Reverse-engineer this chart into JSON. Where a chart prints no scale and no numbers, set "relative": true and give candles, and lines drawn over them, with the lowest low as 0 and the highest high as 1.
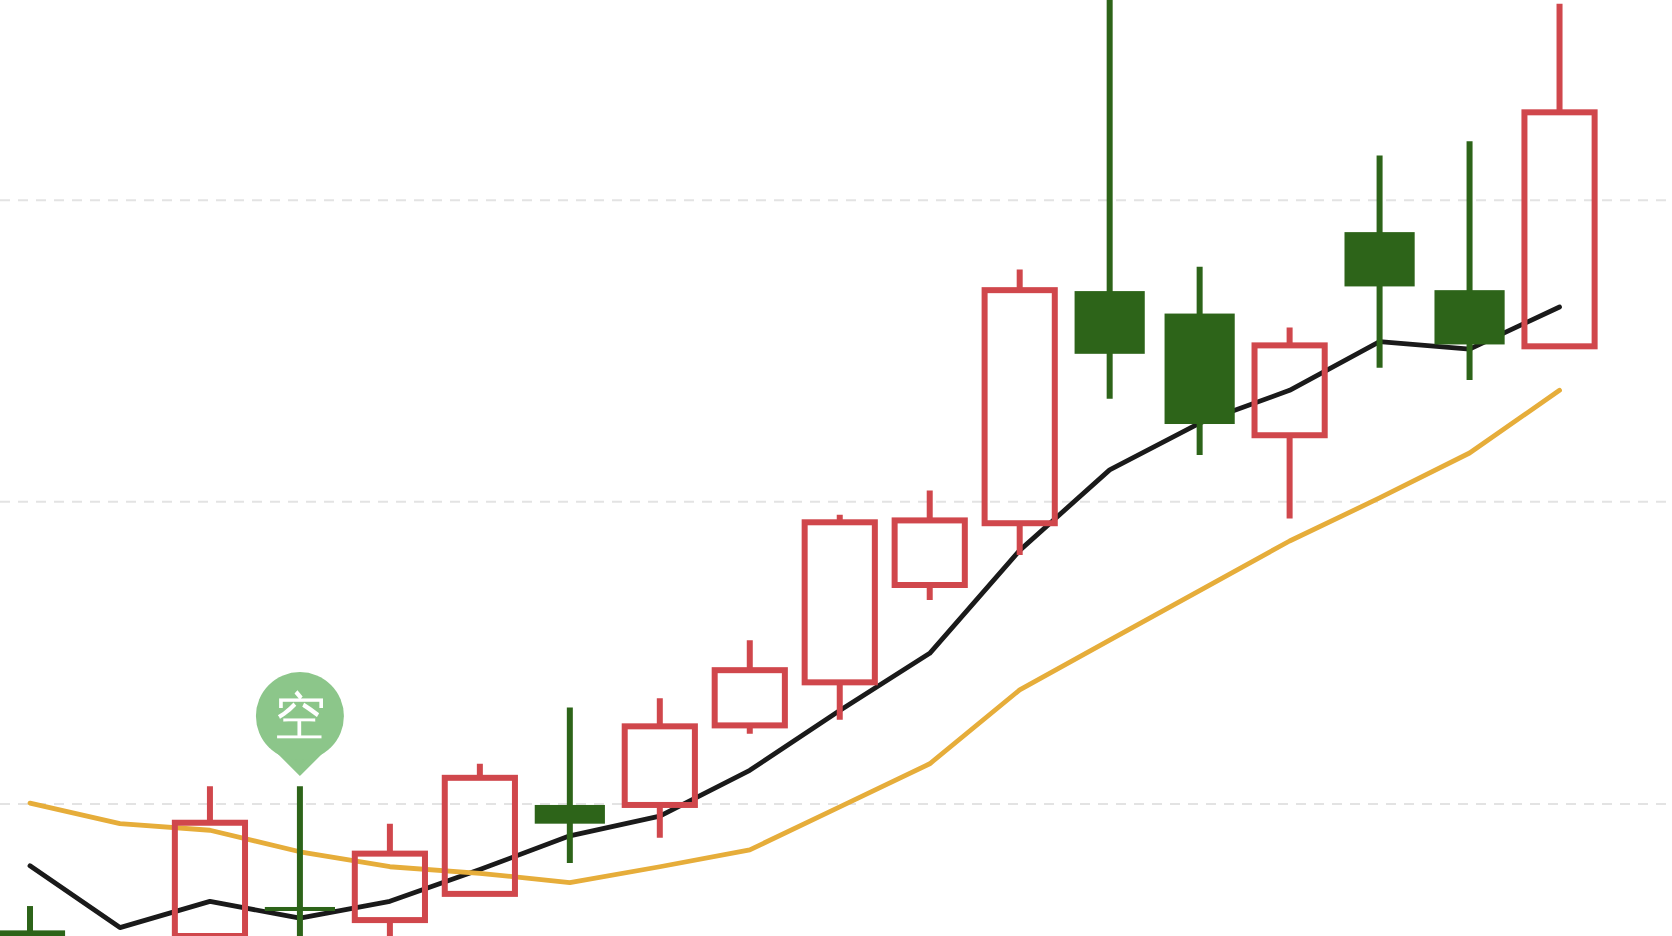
{
  "chart_data": {
    "type": "candlestick",
    "relative": true,
    "categories": [
      null,
      null,
      null,
      null,
      null,
      null,
      null,
      null,
      null,
      null,
      null,
      null,
      null,
      null,
      null,
      null,
      null,
      null
    ],
    "ohlc": [
      [
        0.006,
        0.032,
        0,
        0
      ],
      null,
      [
        0,
        0.16,
        0,
        0.121
      ],
      [
        0.031,
        0.16,
        0,
        0.027
      ],
      [
        0.017,
        0.12,
        0,
        0.088
      ],
      [
        0.045,
        0.184,
        0.045,
        0.169
      ],
      [
        0.14,
        0.244,
        0.078,
        0.12
      ],
      [
        0.14,
        0.254,
        0.105,
        0.224
      ],
      [
        0.225,
        0.316,
        0.216,
        0.284
      ],
      [
        0.271,
        0.45,
        0.231,
        0.442
      ],
      [
        0.375,
        0.476,
        0.359,
        0.444
      ],
      [
        0.441,
        0.712,
        0.407,
        0.69
      ],
      [
        0.689,
        1,
        0.574,
        0.622
      ],
      [
        0.665,
        0.715,
        0.514,
        0.547
      ],
      [
        0.535,
        0.65,
        0.446,
        0.631
      ],
      [
        0.752,
        0.834,
        0.607,
        0.694
      ],
      [
        0.69,
        0.849,
        0.594,
        0.632
      ],
      [
        0.63,
        0.996,
        0.63,
        0.88
      ]
    ],
    "colors": [
      "#2d6419",
      null,
      "#d0474c",
      "#2d6419",
      "#d0474c",
      "#d0474c",
      "#2d6419",
      "#d0474c",
      "#d0474c",
      "#d0474c",
      "#d0474c",
      "#d0474c",
      "#2d6419",
      "#2d6419",
      "#d0474c",
      "#2d6419",
      "#2d6419",
      "#d0474c"
    ],
    "series": [
      {
        "type": "line",
        "color": "#1a1a1a",
        "values": [
          0.075,
          0.009,
          0.037,
          0.019,
          0.037,
          0.071,
          0.107,
          0.128,
          0.177,
          0.241,
          0.302,
          0.412,
          0.498,
          0.548,
          0.583,
          0.635,
          0.627,
          0.672
        ]
      },
      {
        "type": "line",
        "color": "#e6ad3a",
        "values": [
          0.142,
          0.12,
          0.113,
          0.09,
          0.074,
          0.067,
          0.057,
          0.074,
          0.092,
          0.138,
          0.184,
          0.263,
          0.316,
          0.369,
          0.422,
          0.468,
          0.516,
          0.583
        ]
      },
      {
        "type": "scatter",
        "name": "空",
        "color": "#8cc68a",
        "marker": "circle",
        "values": [
          null,
          null,
          null,
          0.235,
          null,
          null,
          null,
          null,
          null,
          null,
          null,
          null,
          null,
          null,
          null,
          null,
          null,
          null
        ]
      }
    ],
    "ref_lines": [
      {
        "axis": "y",
        "value": 0.786,
        "color": "#e3e3e3",
        "line_style": "dashed"
      },
      {
        "axis": "y",
        "value": 0.464,
        "color": "#e3e3e3",
        "line_style": "dashed"
      },
      {
        "axis": "y",
        "value": 0.141,
        "color": "#e3e3e3",
        "line_style": "dashed"
      }
    ]
  }
}
